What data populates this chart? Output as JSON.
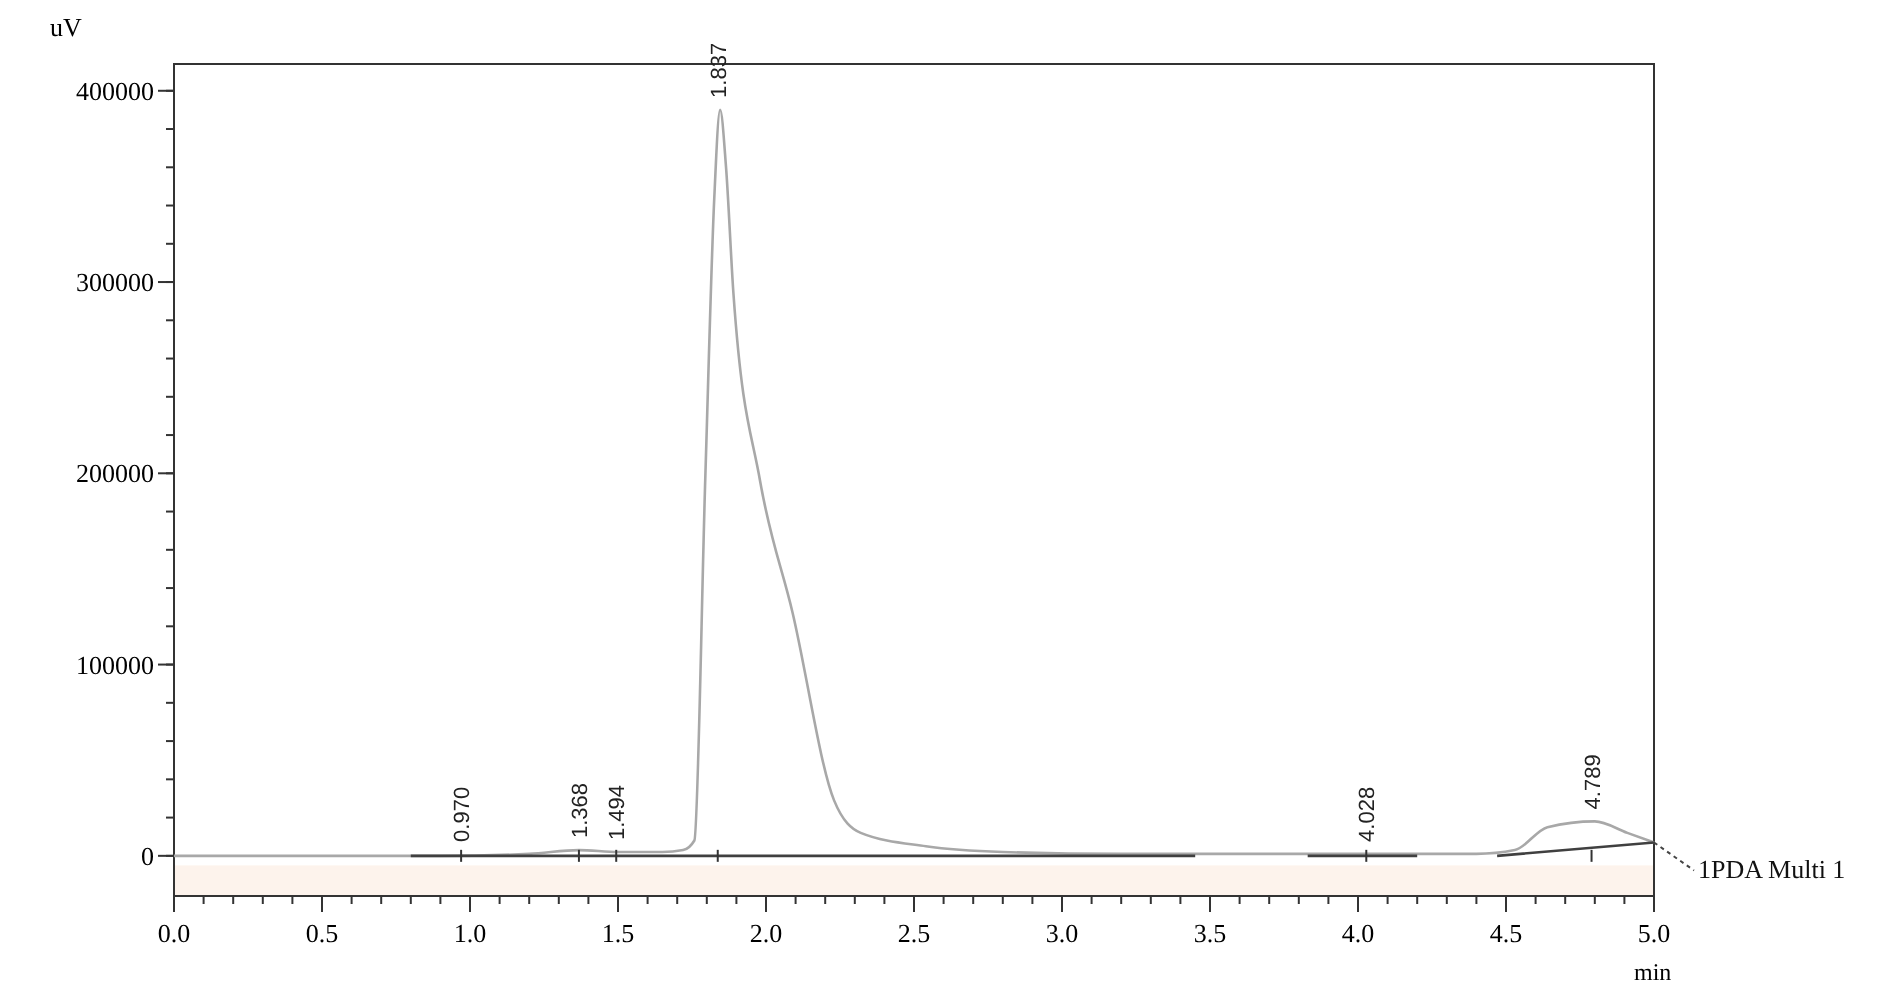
{
  "chart_data": {
    "type": "line",
    "xlabel": "min",
    "ylabel": "uV",
    "xlim": [
      0,
      5
    ],
    "ylim": [
      -21000,
      414000
    ],
    "xticks": [
      {
        "value": 0,
        "label": "0.0"
      },
      {
        "value": 0.5,
        "label": "0.5"
      },
      {
        "value": 1,
        "label": "1.0"
      },
      {
        "value": 1.5,
        "label": "1.5"
      },
      {
        "value": 2,
        "label": "2.0"
      },
      {
        "value": 2.5,
        "label": "2.5"
      },
      {
        "value": 3,
        "label": "3.0"
      },
      {
        "value": 3.5,
        "label": "3.5"
      },
      {
        "value": 4,
        "label": "4.0"
      },
      {
        "value": 4.5,
        "label": "4.5"
      },
      {
        "value": 5,
        "label": "5.0"
      }
    ],
    "yticks": [
      0,
      100000,
      200000,
      300000,
      400000
    ],
    "grid": false,
    "marker": "none",
    "line_style": "solid",
    "bands": [
      {
        "axis": "y",
        "from": -21000,
        "to": -5000,
        "color": "#fdf3ec"
      }
    ],
    "series": [
      {
        "name": "1PDA Multi 1",
        "color": "#a8a8a8",
        "x": [
          0,
          0.5,
          0.9,
          1.2,
          1.368,
          1.5,
          1.65,
          1.72,
          1.758,
          1.795,
          1.825,
          1.845,
          1.865,
          1.89,
          1.98,
          2.09,
          2.23,
          2.32,
          2.54,
          2.8,
          3.2,
          3.6,
          4.0,
          4.4,
          4.53,
          4.64,
          4.8,
          4.91,
          5.0
        ],
        "values": [
          0,
          0,
          0,
          1000,
          3000,
          2000,
          2000,
          3000,
          8000,
          198000,
          343000,
          390000,
          360000,
          294000,
          196000,
          127000,
          29000,
          12000,
          5000,
          2000,
          1000,
          1000,
          1000,
          1000,
          3000,
          15000,
          18000,
          12000,
          7000
        ]
      },
      {
        "color": "#404040",
        "x": [
          0.8,
          3.45,
          3.46,
          3.83,
          4.2,
          4.21,
          4.47,
          5.0
        ],
        "values": [
          0,
          0,
          null,
          0,
          0,
          null,
          0,
          7000
        ]
      }
    ],
    "annotations": [
      {
        "text": "0.970",
        "x": 0.97,
        "y": 1000
      },
      {
        "text": "1.368",
        "x": 1.368,
        "y": 3000
      },
      {
        "text": "1.494",
        "x": 1.494,
        "y": 2000
      },
      {
        "text": "1.837",
        "x": 1.837,
        "y": 390000
      },
      {
        "text": "4.028",
        "x": 4.028,
        "y": 1000
      },
      {
        "text": "4.789",
        "x": 4.789,
        "y": 18000
      }
    ]
  }
}
